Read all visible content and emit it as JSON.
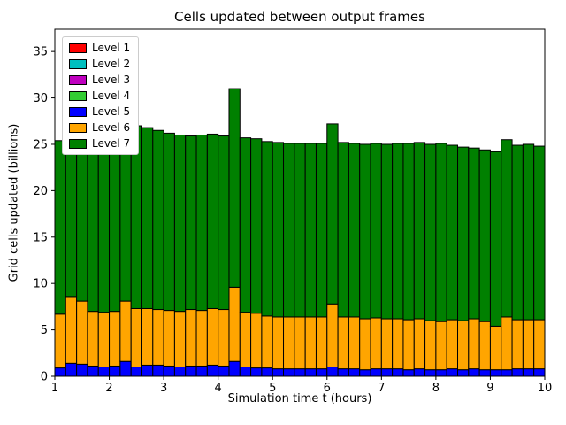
{
  "figure": {
    "title": "Cells updated between output frames",
    "xlabel": "Simulation time t (hours)",
    "ylabel": "Grid cells updated (billions)"
  },
  "chart_data": {
    "type": "bar",
    "stacked": true,
    "title": "Cells updated between output frames",
    "xlabel": "Simulation time t (hours)",
    "ylabel": "Grid cells updated (billions)",
    "xlim": [
      1,
      10
    ],
    "ylim": [
      0,
      37.4
    ],
    "xticks": [
      1,
      2,
      3,
      4,
      5,
      6,
      7,
      8,
      9,
      10
    ],
    "yticks": [
      0,
      5,
      10,
      15,
      20,
      25,
      30,
      35
    ],
    "grid": false,
    "bar_width": 0.2,
    "bar_edge_color": "#000000",
    "legend_position": "upper left",
    "legend_entries": [
      {
        "label": "Level 1",
        "color": "#ff0000"
      },
      {
        "label": "Level 2",
        "color": "#00bfbf"
      },
      {
        "label": "Level 3",
        "color": "#bf00bf"
      },
      {
        "label": "Level 4",
        "color": "#32cd32"
      },
      {
        "label": "Level 5",
        "color": "#0000ff"
      },
      {
        "label": "Level 6",
        "color": "#ffa500"
      },
      {
        "label": "Level 7",
        "color": "#008000"
      }
    ],
    "x": [
      1.1,
      1.3,
      1.5,
      1.7,
      1.9,
      2.1,
      2.3,
      2.5,
      2.7,
      2.9,
      3.1,
      3.3,
      3.5,
      3.7,
      3.9,
      4.1,
      4.3,
      4.5,
      4.7,
      4.9,
      5.1,
      5.3,
      5.5,
      5.7,
      5.9,
      6.1,
      6.3,
      6.5,
      6.7,
      6.9,
      7.1,
      7.3,
      7.5,
      7.7,
      7.9,
      8.1,
      8.3,
      8.5,
      8.7,
      8.9,
      9.1,
      9.3,
      9.5,
      9.7,
      9.9
    ],
    "series": [
      {
        "name": "Level 5",
        "color": "#0000ff",
        "values": [
          0.9,
          1.4,
          1.3,
          1.1,
          1.0,
          1.1,
          1.6,
          1.0,
          1.2,
          1.2,
          1.1,
          1.0,
          1.1,
          1.1,
          1.2,
          1.1,
          1.6,
          1.0,
          0.9,
          0.9,
          0.8,
          0.8,
          0.8,
          0.8,
          0.8,
          1.0,
          0.8,
          0.8,
          0.7,
          0.8,
          0.8,
          0.8,
          0.7,
          0.8,
          0.7,
          0.7,
          0.8,
          0.7,
          0.8,
          0.7,
          0.7,
          0.7,
          0.8,
          0.8,
          0.8
        ]
      },
      {
        "name": "Level 6",
        "color": "#ffa500",
        "values": [
          5.8,
          7.2,
          6.8,
          5.9,
          5.9,
          5.9,
          6.5,
          6.3,
          6.1,
          6.0,
          6.0,
          6.0,
          6.1,
          6.0,
          6.1,
          6.1,
          8.0,
          5.9,
          5.9,
          5.6,
          5.6,
          5.6,
          5.6,
          5.6,
          5.6,
          6.8,
          5.6,
          5.6,
          5.5,
          5.5,
          5.4,
          5.4,
          5.4,
          5.4,
          5.3,
          5.2,
          5.3,
          5.3,
          5.4,
          5.2,
          4.7,
          5.7,
          5.3,
          5.3,
          5.3
        ]
      },
      {
        "name": "Level 7",
        "color": "#008000",
        "values": [
          18.7,
          20.4,
          20.8,
          20.0,
          20.0,
          20.0,
          20.8,
          19.7,
          19.5,
          19.3,
          19.1,
          19.0,
          18.7,
          18.9,
          18.8,
          18.7,
          21.4,
          18.8,
          18.8,
          18.8,
          18.8,
          18.7,
          18.7,
          18.7,
          18.7,
          19.4,
          18.8,
          18.7,
          18.8,
          18.8,
          18.8,
          18.9,
          19.0,
          19.0,
          19.0,
          19.2,
          18.8,
          18.7,
          18.4,
          18.5,
          18.8,
          19.1,
          18.8,
          18.9,
          18.7
        ]
      }
    ]
  }
}
